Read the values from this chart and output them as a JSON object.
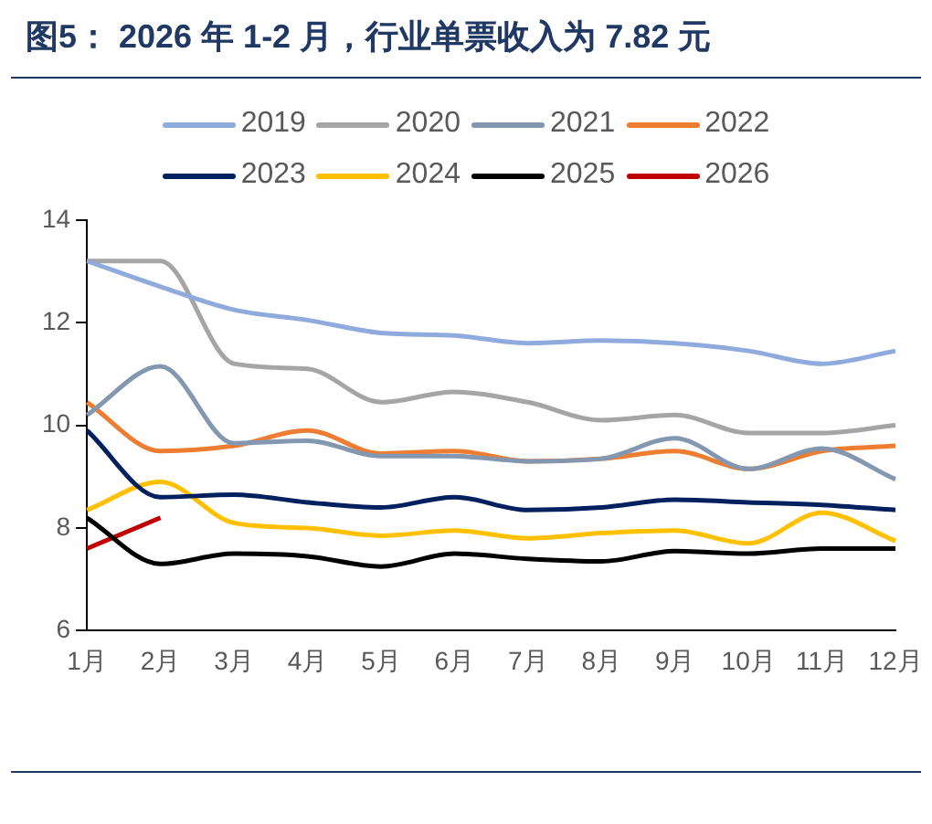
{
  "chart_data": {
    "type": "line",
    "title": "图5： 2026 年 1-2 月，行业单票收入为 7.82 元",
    "categories": [
      "1月",
      "2月",
      "3月",
      "4月",
      "5月",
      "6月",
      "7月",
      "8月",
      "9月",
      "10月",
      "11月",
      "12月"
    ],
    "series": [
      {
        "name": "2019",
        "color": "#8faadc",
        "values": [
          13.2,
          12.7,
          12.25,
          12.05,
          11.8,
          11.75,
          11.6,
          11.65,
          11.6,
          11.45,
          11.2,
          11.45
        ]
      },
      {
        "name": "2020",
        "color": "#a5a5a5",
        "values": [
          13.2,
          13.2,
          11.2,
          11.1,
          10.45,
          10.65,
          10.45,
          10.1,
          10.2,
          9.85,
          9.85,
          10.0
        ]
      },
      {
        "name": "2021",
        "color": "#8497b0",
        "values": [
          10.2,
          11.15,
          9.65,
          9.7,
          9.4,
          9.4,
          9.3,
          9.35,
          9.75,
          9.15,
          9.55,
          8.95
        ]
      },
      {
        "name": "2022",
        "color": "#ed7d31",
        "values": [
          10.45,
          9.5,
          9.6,
          9.9,
          9.45,
          9.5,
          9.3,
          9.35,
          9.5,
          9.15,
          9.5,
          9.6
        ]
      },
      {
        "name": "2023",
        "color": "#002060",
        "values": [
          9.9,
          8.6,
          8.65,
          8.5,
          8.4,
          8.6,
          8.35,
          8.4,
          8.55,
          8.5,
          8.45,
          8.35
        ]
      },
      {
        "name": "2024",
        "color": "#ffc000",
        "values": [
          8.35,
          8.9,
          8.1,
          8.0,
          7.85,
          7.95,
          7.8,
          7.9,
          7.95,
          7.7,
          8.3,
          7.75
        ]
      },
      {
        "name": "2025",
        "color": "#000000",
        "values": [
          8.2,
          7.3,
          7.5,
          7.45,
          7.25,
          7.5,
          7.4,
          7.35,
          7.55,
          7.5,
          7.6,
          7.6
        ]
      },
      {
        "name": "2026",
        "color": "#c00000",
        "values": [
          7.6,
          8.2,
          null,
          null,
          null,
          null,
          null,
          null,
          null,
          null,
          null,
          null
        ]
      }
    ],
    "ylim": [
      6,
      14
    ],
    "yticks": [
      6,
      8,
      10,
      12,
      14
    ],
    "grid": false,
    "legend": "top",
    "marker": "none",
    "line_style": "solid"
  }
}
